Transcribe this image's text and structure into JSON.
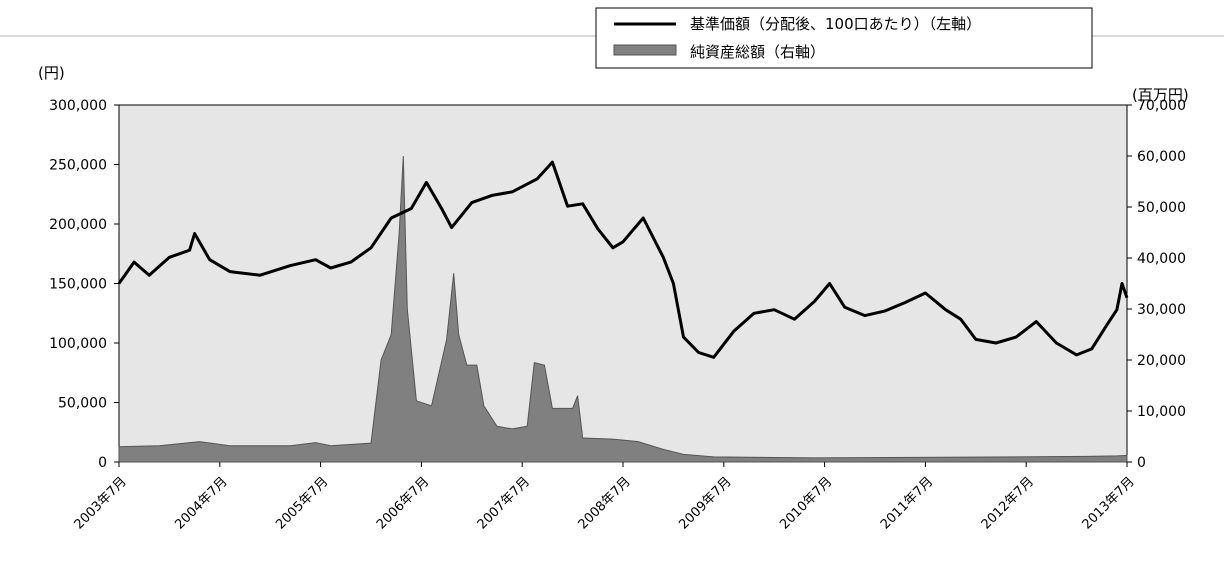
{
  "chart_data": {
    "type": "line+area",
    "legend": {
      "placement": "top-center",
      "entries": [
        {
          "label": "基準価額（分配後、100口あたり）（左軸）",
          "style": "line",
          "color": "#000000"
        },
        {
          "label": "純資産総額（右軸）",
          "style": "area",
          "color": "#808080"
        }
      ]
    },
    "left_axis": {
      "unit": "(円)",
      "ylim": [
        0,
        300000
      ],
      "ticks": [
        "300,000",
        "250,000",
        "200,000",
        "150,000",
        "100,000",
        "50,000",
        "0"
      ]
    },
    "right_axis": {
      "unit": "(百万円)",
      "ylim": [
        0,
        70000
      ],
      "ticks": [
        "70,000",
        "60,000",
        "50,000",
        "40,000",
        "30,000",
        "20,000",
        "10,000",
        "0"
      ]
    },
    "x_ticks": [
      "2003年7月",
      "2004年7月",
      "2005年7月",
      "2006年7月",
      "2007年7月",
      "2008年7月",
      "2009年7月",
      "2010年7月",
      "2011年7月",
      "2012年7月",
      "2013年7月"
    ],
    "xlim": [
      2003.6,
      2013.6
    ],
    "grid": false,
    "plot_background": "#e6e6e6",
    "series": [
      {
        "name": "基準価額（分配後、100口あたり）（左軸）",
        "axis": "left",
        "points": [
          [
            2003.6,
            150000
          ],
          [
            2003.75,
            168000
          ],
          [
            2003.9,
            157000
          ],
          [
            2004.1,
            172000
          ],
          [
            2004.3,
            178000
          ],
          [
            2004.35,
            192000
          ],
          [
            2004.5,
            170000
          ],
          [
            2004.7,
            160000
          ],
          [
            2005.0,
            157000
          ],
          [
            2005.3,
            165000
          ],
          [
            2005.55,
            170000
          ],
          [
            2005.7,
            163000
          ],
          [
            2005.9,
            168000
          ],
          [
            2006.1,
            180000
          ],
          [
            2006.3,
            205000
          ],
          [
            2006.5,
            213000
          ],
          [
            2006.65,
            235000
          ],
          [
            2006.8,
            213000
          ],
          [
            2006.9,
            197000
          ],
          [
            2007.1,
            218000
          ],
          [
            2007.3,
            224000
          ],
          [
            2007.5,
            227000
          ],
          [
            2007.75,
            238000
          ],
          [
            2007.9,
            252000
          ],
          [
            2008.05,
            215000
          ],
          [
            2008.2,
            217000
          ],
          [
            2008.35,
            196000
          ],
          [
            2008.5,
            180000
          ],
          [
            2008.6,
            185000
          ],
          [
            2008.8,
            205000
          ],
          [
            2009.0,
            172000
          ],
          [
            2009.1,
            150000
          ],
          [
            2009.2,
            105000
          ],
          [
            2009.35,
            92000
          ],
          [
            2009.5,
            88000
          ],
          [
            2009.7,
            110000
          ],
          [
            2009.9,
            125000
          ],
          [
            2010.1,
            128000
          ],
          [
            2010.3,
            120000
          ],
          [
            2010.5,
            135000
          ],
          [
            2010.65,
            150000
          ],
          [
            2010.8,
            130000
          ],
          [
            2011.0,
            123000
          ],
          [
            2011.2,
            127000
          ],
          [
            2011.4,
            134000
          ],
          [
            2011.6,
            142000
          ],
          [
            2011.8,
            128000
          ],
          [
            2011.95,
            120000
          ],
          [
            2012.1,
            103000
          ],
          [
            2012.3,
            100000
          ],
          [
            2012.5,
            105000
          ],
          [
            2012.7,
            118000
          ],
          [
            2012.9,
            100000
          ],
          [
            2013.1,
            90000
          ],
          [
            2013.25,
            95000
          ],
          [
            2013.4,
            115000
          ],
          [
            2013.5,
            128000
          ],
          [
            2013.55,
            150000
          ],
          [
            2013.6,
            138000
          ]
        ]
      },
      {
        "name": "純資産総額（右軸）",
        "axis": "right",
        "points": [
          [
            2003.6,
            3000
          ],
          [
            2004.0,
            3200
          ],
          [
            2004.4,
            4000
          ],
          [
            2004.7,
            3200
          ],
          [
            2005.3,
            3200
          ],
          [
            2005.55,
            3800
          ],
          [
            2005.7,
            3200
          ],
          [
            2006.1,
            3700
          ],
          [
            2006.2,
            20000
          ],
          [
            2006.3,
            25000
          ],
          [
            2006.38,
            45000
          ],
          [
            2006.42,
            60000
          ],
          [
            2006.46,
            30000
          ],
          [
            2006.55,
            12000
          ],
          [
            2006.7,
            11000
          ],
          [
            2006.85,
            24000
          ],
          [
            2006.92,
            37000
          ],
          [
            2006.97,
            25000
          ],
          [
            2007.05,
            19000
          ],
          [
            2007.15,
            19000
          ],
          [
            2007.22,
            11000
          ],
          [
            2007.35,
            7000
          ],
          [
            2007.5,
            6500
          ],
          [
            2007.65,
            7000
          ],
          [
            2007.72,
            19500
          ],
          [
            2007.82,
            19000
          ],
          [
            2007.9,
            10500
          ],
          [
            2008.1,
            10500
          ],
          [
            2008.15,
            13000
          ],
          [
            2008.2,
            4700
          ],
          [
            2008.5,
            4500
          ],
          [
            2008.75,
            4000
          ],
          [
            2009.0,
            2500
          ],
          [
            2009.2,
            1500
          ],
          [
            2009.5,
            1000
          ],
          [
            2010.5,
            800
          ],
          [
            2012.5,
            1000
          ],
          [
            2013.2,
            1100
          ],
          [
            2013.5,
            1200
          ],
          [
            2013.6,
            1300
          ]
        ]
      }
    ]
  }
}
